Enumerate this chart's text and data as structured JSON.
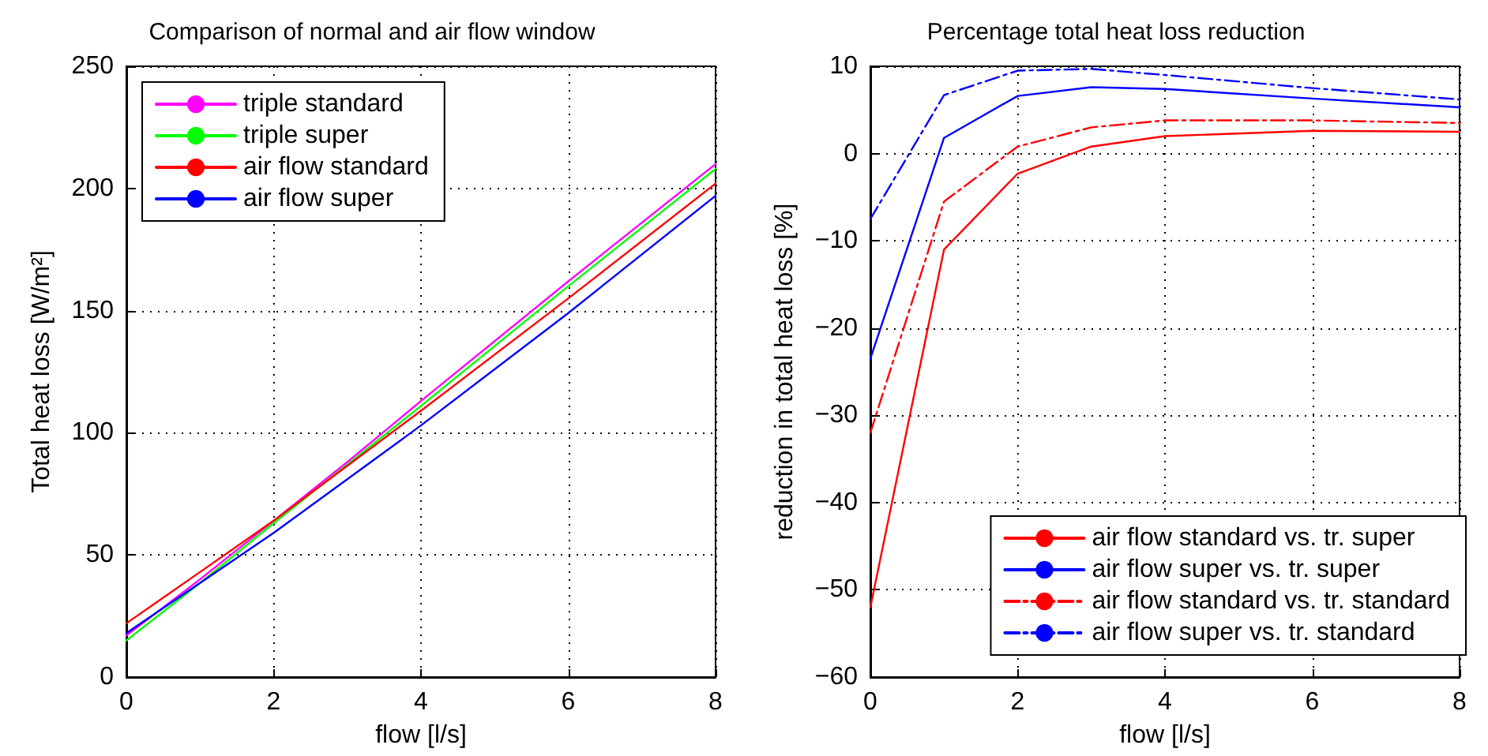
{
  "chart_data": [
    {
      "type": "line",
      "title": "Comparison of normal and air flow window",
      "xlabel": "flow [l/s]",
      "ylabel": "Total heat loss [W/m²]",
      "x": [
        0,
        1,
        2,
        3,
        4,
        6,
        8
      ],
      "series": [
        {
          "name": "triple standard",
          "color": "#ff00ff",
          "values": [
            17,
            40,
            64,
            88,
            113,
            162,
            210
          ]
        },
        {
          "name": "triple super",
          "color": "#00ff00",
          "values": [
            15,
            38.5,
            63,
            87,
            111,
            160,
            208
          ]
        },
        {
          "name": "air flow standard",
          "color": "#ff0000",
          "values": [
            22,
            43,
            64,
            86.5,
            109,
            155,
            202
          ]
        },
        {
          "name": "air flow super",
          "color": "#0000ff",
          "values": [
            18,
            38.5,
            59,
            81,
            103,
            149,
            197
          ]
        }
      ],
      "xlim": [
        0,
        8
      ],
      "xticks": [
        0,
        2,
        4,
        6,
        8
      ],
      "ylim": [
        0,
        250
      ],
      "yticks": [
        0,
        50,
        100,
        150,
        200,
        250
      ],
      "grid": true,
      "legend": "top left",
      "marker": "none",
      "line_style": "solid"
    },
    {
      "type": "line",
      "title": "Percentage total heat loss reduction",
      "xlabel": "flow [l/s]",
      "ylabel": "reduction in total heat loss [%]",
      "x": [
        0,
        1,
        2,
        3,
        4,
        6,
        8
      ],
      "series": [
        {
          "name": "air flow standard vs. tr. super",
          "color": "#ff0000",
          "line_style": "solid",
          "values": [
            -52,
            -11,
            -2.3,
            0.8,
            2,
            2.6,
            2.5
          ]
        },
        {
          "name": "air flow super vs. tr. super",
          "color": "#0000ff",
          "line_style": "solid",
          "values": [
            -23.5,
            1.8,
            6.6,
            7.6,
            7.4,
            6.3,
            5.3
          ]
        },
        {
          "name": "air flow standard vs. tr. standard",
          "color": "#ff0000",
          "line_style": "dashed",
          "values": [
            -32,
            -5.5,
            0.8,
            3,
            3.8,
            3.8,
            3.5
          ]
        },
        {
          "name": "air flow super vs. tr. standard",
          "color": "#0000ff",
          "line_style": "dashed",
          "values": [
            -7.5,
            6.7,
            9.5,
            9.7,
            9,
            7.5,
            6.2
          ]
        }
      ],
      "xlim": [
        0,
        8
      ],
      "xticks": [
        0,
        2,
        4,
        6,
        8
      ],
      "ylim": [
        -60,
        10
      ],
      "yticks": [
        -60,
        -50,
        -40,
        -30,
        -20,
        -10,
        0,
        10
      ],
      "grid": true,
      "legend": "bottom right",
      "marker": "none"
    }
  ]
}
